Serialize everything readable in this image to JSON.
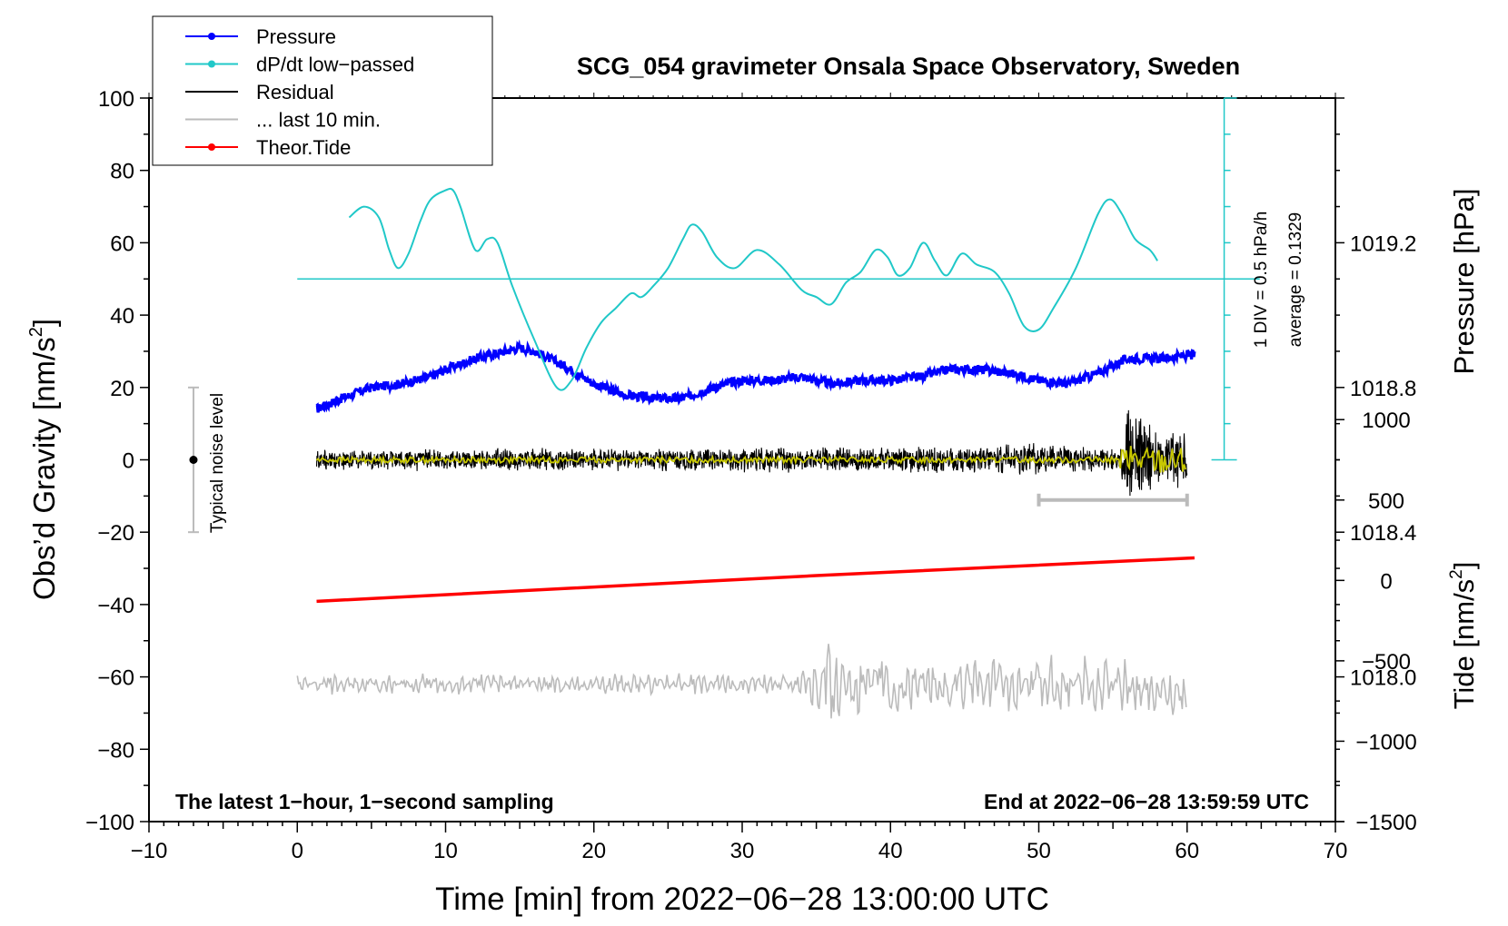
{
  "chart_data": {
    "type": "line",
    "title": "SCG_054 gravimeter Onsala Space Observatory, Sweden",
    "xlabel": "Time [min] from 2022−06−28 13:00:00 UTC",
    "ylabel_left_main": "Obs’d Gravity [nm/s",
    "ylabel_left_sup": "2",
    "ylabel_left_end": "]",
    "ylabel_right_pressure": "Pressure [hPa]",
    "ylabel_right_tide_main": "Tide [nm/s",
    "ylabel_right_tide_sup": "2",
    "ylabel_right_tide_end": "]",
    "xlim": [
      -10,
      70
    ],
    "ylim": [
      -100,
      100
    ],
    "pressure_lim": [
      1017.6,
      1019.6
    ],
    "tide_lim": [
      -1500,
      3000
    ],
    "x_ticks": [
      {
        "v": -10,
        "label": "−10"
      },
      {
        "v": 0,
        "label": "0"
      },
      {
        "v": 10,
        "label": "10"
      },
      {
        "v": 20,
        "label": "20"
      },
      {
        "v": 30,
        "label": "30"
      },
      {
        "v": 40,
        "label": "40"
      },
      {
        "v": 50,
        "label": "50"
      },
      {
        "v": 60,
        "label": "60"
      },
      {
        "v": 70,
        "label": "70"
      }
    ],
    "y_ticks": [
      {
        "v": 100,
        "label": "100"
      },
      {
        "v": 80,
        "label": "80"
      },
      {
        "v": 60,
        "label": "60"
      },
      {
        "v": 40,
        "label": "40"
      },
      {
        "v": 20,
        "label": "20"
      },
      {
        "v": 0,
        "label": "0"
      },
      {
        "v": -20,
        "label": "−20"
      },
      {
        "v": -40,
        "label": "−40"
      },
      {
        "v": -60,
        "label": "−60"
      },
      {
        "v": -80,
        "label": "−80"
      },
      {
        "v": -100,
        "label": "−100"
      }
    ],
    "pressure_ticks": [
      {
        "v": 1019.2,
        "label": "1019.2"
      },
      {
        "v": 1018.8,
        "label": "1018.8"
      },
      {
        "v": 1018.4,
        "label": "1018.4"
      },
      {
        "v": 1018.0,
        "label": "1018.0"
      }
    ],
    "tide_ticks": [
      {
        "v": 1000,
        "label": "1000"
      },
      {
        "v": 500,
        "label": "500"
      },
      {
        "v": 0,
        "label": "0"
      },
      {
        "v": -500,
        "label": "−500"
      },
      {
        "v": -1000,
        "label": "−1000"
      },
      {
        "v": -1500,
        "label": "−1500"
      }
    ],
    "legend": {
      "position": "top-left",
      "entries": [
        {
          "label": "Pressure",
          "color": "#0000ff",
          "marker": true
        },
        {
          "label": "dP/dt low−passed",
          "color": "#20c8c8",
          "marker": true
        },
        {
          "label": "Residual",
          "color": "#000000",
          "marker": false
        },
        {
          "label": "... last 10 min.",
          "color": "#bbbbbb",
          "marker": false
        },
        {
          "label": "Theor.Tide",
          "color": "#ff0000",
          "marker": true
        }
      ]
    },
    "annotations": {
      "noise_label": "Typical noise level",
      "noise_range": [
        -20,
        20
      ],
      "noise_x": -7,
      "dpdt_scale": "1 DIV = 0.5 hPa/h",
      "dpdt_average": "average = 0.1329",
      "dpdt_zero": 50,
      "dpdt_axis_x": 62.5,
      "dpdt_axis_range": [
        0,
        100
      ],
      "last10_bar": [
        50,
        60
      ],
      "last10_bar_tide": 500,
      "footer_left": "The latest 1−hour, 1−second sampling",
      "footer_right": "End at 2022−06−28 13:59:59 UTC"
    },
    "series": [
      {
        "name": "Pressure",
        "axis": "pressure",
        "color": "#0000ff",
        "x": [
          1.3,
          3,
          5,
          7,
          9,
          10,
          12,
          14,
          15,
          16,
          18,
          20,
          22,
          24,
          26,
          28,
          30,
          32,
          34,
          36,
          38,
          40,
          42,
          44,
          46,
          48,
          50,
          52,
          54,
          56,
          58,
          60.5
        ],
        "values": [
          1018.74,
          1018.77,
          1018.8,
          1018.81,
          1018.83,
          1018.85,
          1018.88,
          1018.9,
          1018.91,
          1018.9,
          1018.86,
          1018.81,
          1018.78,
          1018.77,
          1018.77,
          1018.8,
          1018.82,
          1018.82,
          1018.83,
          1018.81,
          1018.82,
          1018.82,
          1018.83,
          1018.85,
          1018.85,
          1018.84,
          1018.82,
          1018.81,
          1018.84,
          1018.88,
          1018.88,
          1018.89
        ]
      },
      {
        "name": "dP/dt low-passed",
        "axis": "left",
        "color": "#20c8c8",
        "x": [
          3.5,
          4.5,
          5.5,
          6.2,
          6.8,
          7.5,
          8.3,
          9,
          10,
          10.5,
          11,
          12,
          12.8,
          13.5,
          14.5,
          16,
          17.5,
          18.5,
          19.5,
          20.5,
          21.5,
          22.5,
          23.2,
          24,
          25,
          26,
          26.6,
          27.3,
          28.3,
          29.5,
          31,
          32.5,
          34,
          35,
          36,
          37,
          38,
          39,
          39.8,
          40.5,
          41.3,
          42.2,
          43,
          43.8,
          44.8,
          45.8,
          47,
          48,
          49,
          50,
          51,
          52.5,
          54,
          54.8,
          55.6,
          56.5,
          57.5,
          58
        ],
        "values": [
          67,
          70,
          67,
          58,
          53,
          57,
          66,
          72,
          74.5,
          74.5,
          70,
          58,
          61,
          60,
          48,
          33,
          20,
          22,
          31,
          38,
          42,
          46,
          45,
          48,
          53,
          61,
          65,
          63,
          56,
          53,
          58,
          54,
          47,
          45,
          43,
          49,
          52,
          58,
          56,
          51,
          53,
          60,
          55,
          51,
          57,
          54,
          52,
          46,
          37,
          36,
          42,
          53,
          68,
          72,
          68,
          61,
          58,
          55
        ]
      },
      {
        "name": "Residual",
        "axis": "left",
        "color": "#000000",
        "x": [
          1.3,
          47,
          48.5,
          55.5,
          56,
          58,
          60
        ],
        "values": [
          0,
          0,
          0,
          0,
          0,
          0,
          0
        ],
        "envelope": [
          3,
          4,
          5,
          3,
          16,
          9,
          8
        ]
      },
      {
        "name": "Residual smoothed",
        "axis": "left",
        "color": "#c8c800",
        "x": [
          1.3,
          60
        ],
        "values": [
          0,
          0
        ]
      },
      {
        "name": "... last 10 min.",
        "axis": "left",
        "color": "#bbbbbb",
        "x": [
          0,
          34,
          35.5,
          37,
          40,
          55.5,
          60
        ],
        "values": [
          -62,
          -62,
          -62,
          -62,
          -62,
          -62,
          -66
        ],
        "envelope": [
          3,
          3,
          14,
          10,
          9,
          8,
          6
        ]
      },
      {
        "name": "Theor.Tide",
        "axis": "tide",
        "color": "#ff0000",
        "x": [
          1.3,
          35,
          60.5
        ],
        "values": [
          -130,
          30,
          140
        ]
      }
    ]
  }
}
